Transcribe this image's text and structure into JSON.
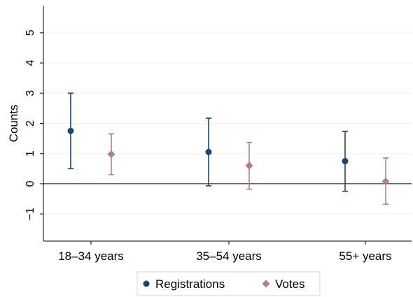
{
  "chart_data": {
    "type": "scatter",
    "subtype": "point-with-error-bars",
    "title": "",
    "xlabel": "",
    "ylabel": "Counts",
    "categories": [
      "18–34 years",
      "35–54 years",
      "55+ years"
    ],
    "ylim": [
      -1.9,
      5.9
    ],
    "yticks": [
      -1,
      0,
      1,
      2,
      3,
      4,
      5
    ],
    "ytick_labels": [
      "−1",
      "0",
      "1",
      "2",
      "3",
      "4",
      "5"
    ],
    "grid": "horizontal",
    "reference_line": 0,
    "legend_position": "bottom",
    "series": [
      {
        "name": "Registrations",
        "marker": "circle",
        "color": "#1a476f",
        "points": [
          {
            "category": "18–34 years",
            "estimate": 1.75,
            "lower": 0.5,
            "upper": 3.0
          },
          {
            "category": "35–54 years",
            "estimate": 1.05,
            "lower": -0.07,
            "upper": 2.17
          },
          {
            "category": "55+ years",
            "estimate": 0.75,
            "lower": -0.25,
            "upper": 1.73
          }
        ]
      },
      {
        "name": "Votes",
        "marker": "diamond",
        "color": "#b67e7e",
        "points": [
          {
            "category": "18–34 years",
            "estimate": 0.98,
            "lower": 0.3,
            "upper": 1.65
          },
          {
            "category": "35–54 years",
            "estimate": 0.6,
            "lower": -0.18,
            "upper": 1.37
          },
          {
            "category": "55+ years",
            "estimate": 0.08,
            "lower": -0.68,
            "upper": 0.85
          }
        ]
      }
    ]
  }
}
